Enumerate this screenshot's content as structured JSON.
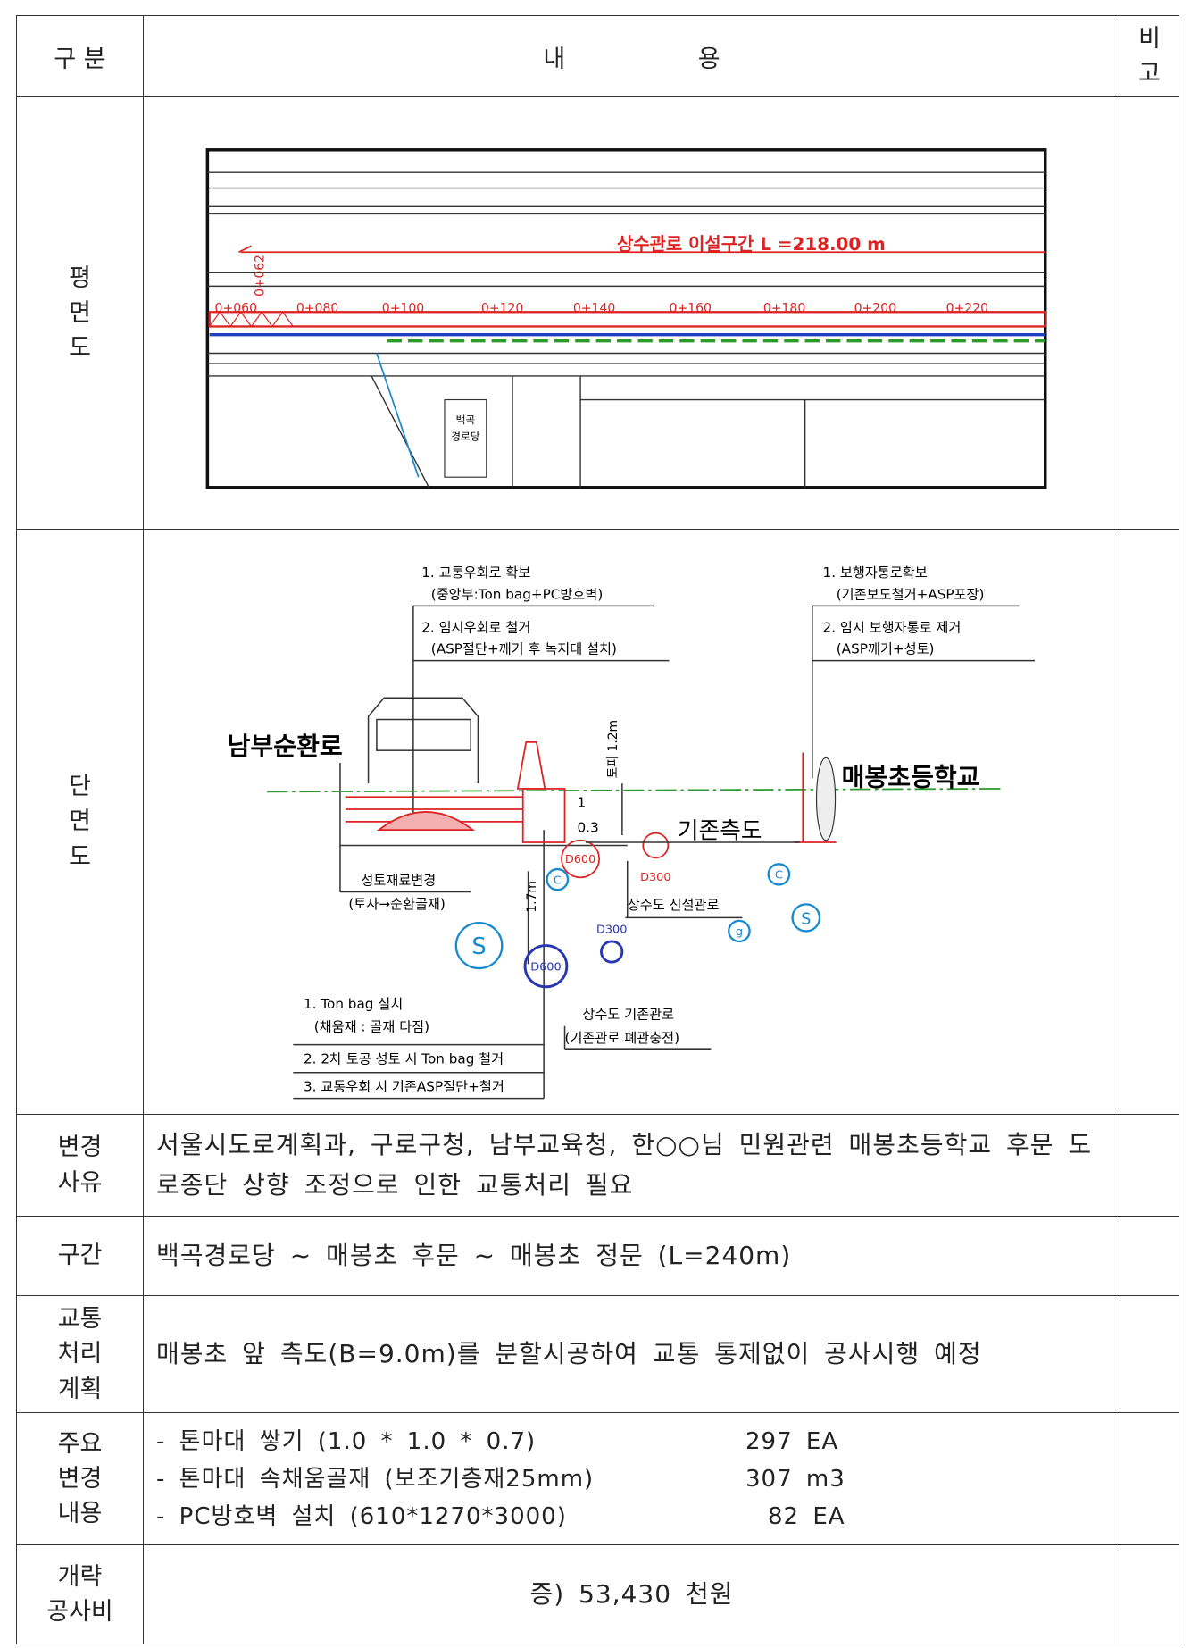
{
  "header": {
    "category": "구 분",
    "content": "내 용",
    "remarks": "비\n고"
  },
  "plan": {
    "label": "평\n면\n도",
    "title": "상수관로 이설구간 L =218.00 m",
    "stations": [
      "0+060",
      "0+080",
      "0+100",
      "0+120",
      "0+140",
      "0+160",
      "0+180",
      "0+200",
      "0+220"
    ],
    "start_station": "0+062",
    "building": [
      "백곡",
      "경로당"
    ]
  },
  "section": {
    "label": "단\n면\n도",
    "road": "남부순환로",
    "school": "매봉초등학교",
    "sidewalk": "기존측도",
    "notes_top_left": [
      "1. 교통우회로 확보",
      "(중앙부:Ton bag+PC방호벽)",
      "2. 임시우회로 철거",
      "(ASP절단+깨기 후 녹지대 설치)"
    ],
    "notes_top_right": [
      "1. 보행자통로확보",
      "(기존보도철거+ASP포장)",
      "2. 임시 보행자통로 제거",
      "(ASP깨기+성토)"
    ],
    "fill_change": [
      "성토재료변경",
      "(토사→순환골재)"
    ],
    "cover": "토피 1.2m",
    "depth": "1.7m",
    "slope": [
      "1",
      "0.3"
    ],
    "new_pipe": {
      "label": "상수도 신설관로",
      "sizes": [
        "D600",
        "D300"
      ]
    },
    "existing_pipe": {
      "label": [
        "상수도 기존관로",
        "(기존관로 폐관충전)"
      ],
      "sizes": [
        "D300",
        "D600"
      ]
    },
    "notes_bottom": [
      "1. Ton bag 설치",
      "(채움재 : 골재 다짐)",
      "2. 2차 토공 성토 시 Ton bag 철거",
      "3. 교통우회 시 기존ASP절단+철거"
    ],
    "symbols": [
      "S",
      "C",
      "C",
      "g",
      "S"
    ]
  },
  "rows": [
    {
      "label": "변경\n사유",
      "text": "서울시도로계획과, 구로구청, 남부교육청, 한○○님 민원관련 매봉초등학교 후문 도로종단 상향 조정으로 인한 교통처리 필요"
    },
    {
      "label": "구간",
      "text": "백곡경로당 ~ 매봉초 후문 ~ 매봉초 정문 (L=240m)"
    },
    {
      "label": "교통\n처리\n계획",
      "text": "매봉초 앞 측도(B=9.0m)를 분할시공하여 교통 통제없이 공사시행 예정"
    }
  ],
  "items": {
    "label": "주요\n변경\n내용",
    "list": [
      {
        "name": "- 톤마대 쌓기 (1.0 * 1.0 * 0.7)",
        "qty": "297 EA"
      },
      {
        "name": "- 톤마대 속채움골재 (보조기층재25mm)",
        "qty": "307 m3"
      },
      {
        "name": "- PC방호벽 설치 (610*1270*3000)",
        "qty": "82 EA"
      }
    ]
  },
  "cost": {
    "label": "개략\n공사비",
    "text": "증) 53,430 천원"
  }
}
